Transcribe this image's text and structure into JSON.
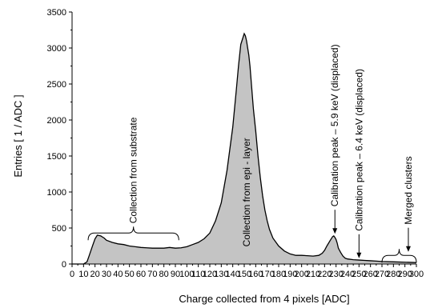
{
  "chart_data": {
    "type": "area",
    "title": "",
    "xlabel": "Charge collected from 4 pixels [ADC]",
    "ylabel": "Entries [ 1 / ADC ]",
    "xlim": [
      0,
      300
    ],
    "ylim": [
      0,
      3500
    ],
    "x_ticks": [
      0,
      10,
      20,
      30,
      40,
      50,
      60,
      70,
      80,
      90,
      100,
      110,
      120,
      130,
      140,
      150,
      160,
      170,
      180,
      190,
      200,
      210,
      220,
      230,
      240,
      250,
      260,
      270,
      280,
      290,
      300
    ],
    "y_ticks": [
      0,
      500,
      1000,
      1500,
      2000,
      2500,
      3000,
      3500
    ],
    "grid": false,
    "legend": "none",
    "fill_color": "#c4c4c4",
    "line_color": "#000000",
    "series": [
      {
        "x": [
          0,
          5,
          10,
          13,
          15,
          18,
          20,
          22,
          25,
          28,
          30,
          35,
          40,
          45,
          50,
          55,
          60,
          65,
          70,
          75,
          80,
          85,
          90,
          95,
          100,
          105,
          110,
          115,
          120,
          125,
          130,
          135,
          140,
          143,
          145,
          147,
          149,
          150,
          151,
          152,
          153,
          154,
          155,
          156,
          157,
          158,
          160,
          162,
          164,
          166,
          168,
          170,
          172,
          175,
          180,
          185,
          190,
          195,
          200,
          205,
          210,
          215,
          218,
          220,
          222,
          225,
          227,
          228,
          229,
          230,
          231,
          232,
          234,
          236,
          238,
          240,
          245,
          250,
          255,
          260,
          265,
          270,
          280,
          290,
          300
        ],
        "y": [
          0,
          0,
          0,
          30,
          120,
          260,
          350,
          400,
          390,
          360,
          330,
          300,
          280,
          270,
          250,
          240,
          230,
          225,
          220,
          220,
          220,
          230,
          220,
          225,
          240,
          270,
          300,
          350,
          430,
          600,
          850,
          1300,
          1900,
          2400,
          2750,
          3050,
          3150,
          3200,
          3170,
          3100,
          3000,
          2900,
          2750,
          2550,
          2350,
          2150,
          1850,
          1500,
          1200,
          950,
          750,
          600,
          480,
          360,
          250,
          180,
          140,
          120,
          120,
          115,
          110,
          120,
          150,
          190,
          250,
          330,
          380,
          390,
          370,
          340,
          290,
          220,
          160,
          110,
          80,
          70,
          60,
          55,
          50,
          45,
          40,
          35,
          30,
          25,
          20
        ]
      }
    ],
    "annotations": [
      {
        "text": "Collection from substrate",
        "type": "brace",
        "x_range": [
          14,
          93
        ],
        "y": 430
      },
      {
        "text": "Collection from epi -  layer",
        "type": "vertical-text",
        "x": 152,
        "y_base": 240
      },
      {
        "text": "Calibration peak – 5.9 keV (displaced)",
        "type": "vertical-arrow",
        "x": 229,
        "arrow_to": 420
      },
      {
        "text": "Calibration peak – 6.4 keV (displaced)",
        "type": "vertical-arrow",
        "x": 250,
        "arrow_to": 80
      },
      {
        "text": "Merged clusters",
        "type": "vertical-arrow-brace",
        "x": 293,
        "arrow_to": 170,
        "x_range": [
          270,
          300
        ],
        "y": 120
      }
    ]
  }
}
